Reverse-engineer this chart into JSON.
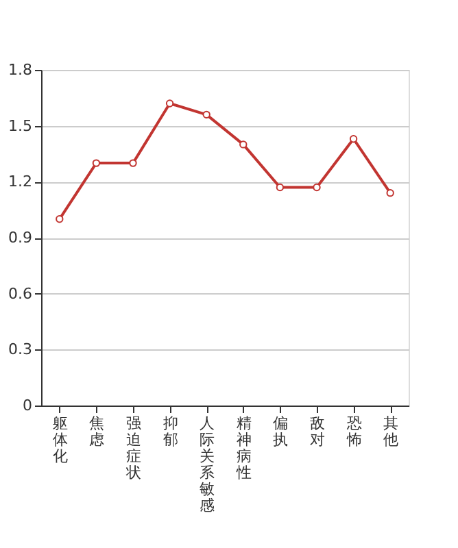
{
  "chart_data": {
    "type": "line",
    "categories": [
      "躯体化",
      "焦虑",
      "强迫症状",
      "抑郁",
      "人际关系敏感",
      "精神病性",
      "偏执",
      "敌对",
      "恐怖",
      "其他"
    ],
    "series": [
      {
        "color": "#c23531",
        "values": [
          1.0,
          1.3,
          1.3,
          1.62,
          1.56,
          1.4,
          1.17,
          1.17,
          1.43,
          1.14
        ]
      }
    ],
    "ylim": [
      0,
      1.8
    ],
    "yticks": [
      0,
      0.3,
      0.6,
      0.9,
      1.2,
      1.5,
      1.8
    ],
    "grid": "y",
    "marker": "circle",
    "line_style": "solid"
  }
}
